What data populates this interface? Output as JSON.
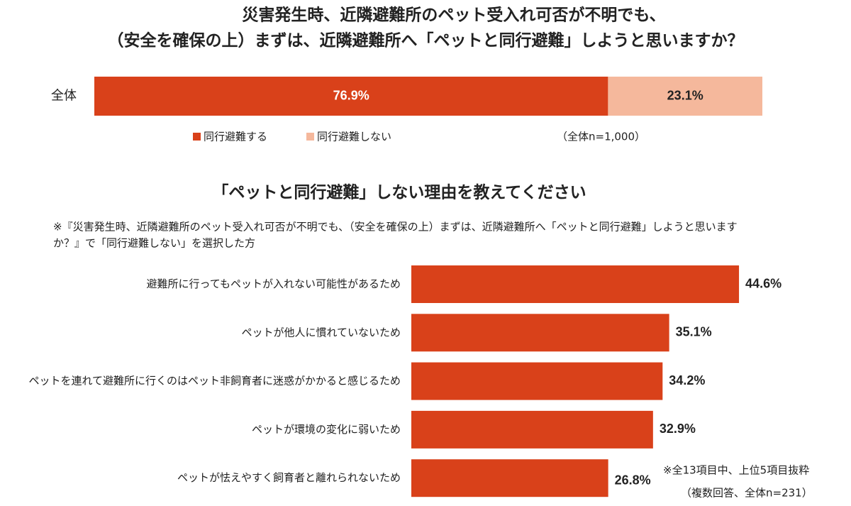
{
  "chart_data": [
    {
      "type": "bar",
      "orientation": "horizontal",
      "stacked": true,
      "title": [
        "災害発生時、近隣避難所のペット受入れ可否が不明でも、",
        "（安全を確保の上）まずは、近隣避難所へ「ペットと同行避難」しようと思いますか？"
      ],
      "categories": [
        "全体"
      ],
      "series": [
        {
          "name": "同行避難する",
          "color": "#d9411a",
          "label_color": "#ffffff",
          "values": [
            76.9
          ],
          "value_labels": [
            "76.9%"
          ]
        },
        {
          "name": "同行避難しない",
          "color": "#f5b89c",
          "label_color": "#222222",
          "values": [
            23.1
          ],
          "value_labels": [
            "23.1%"
          ]
        }
      ],
      "xlim": [
        0,
        100
      ],
      "note": "（全体n=1,000）"
    },
    {
      "type": "bar",
      "orientation": "horizontal",
      "stacked": false,
      "title": [
        "「ペットと同行避難」しない理由を教えてください"
      ],
      "subtitle": [
        "※『災害発生時、近隣避難所のペット受入れ可否が不明でも、（安全を確保の上）まずは、近隣避難所へ「ペットと同行避難」しようと思います",
        "か？』で「同行避難しない」を選択した方"
      ],
      "categories": [
        "避難所に行ってもペットが入れない可能性があるため",
        "ペットが他人に慣れていないため",
        "ペットを連れて避難所に行くのはペット非飼育者に迷惑がかかると感じるため",
        "ペットが環境の変化に弱いため",
        "ペットが怯えやすく飼育者と離れられないため"
      ],
      "values": [
        44.6,
        35.1,
        34.2,
        32.9,
        26.8
      ],
      "value_labels": [
        "44.6%",
        "35.1%",
        "34.2%",
        "32.9%",
        "26.8%"
      ],
      "color": "#d9411a",
      "xlim": [
        0,
        50
      ],
      "notes": [
        "※全13項目中、上位5項目抜粋",
        "（複数回答、全体n=231）"
      ]
    }
  ]
}
